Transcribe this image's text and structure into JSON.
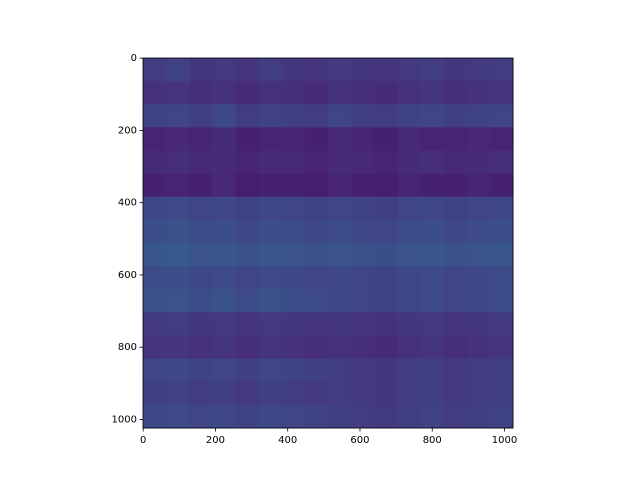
{
  "chart_data": {
    "type": "heatmap",
    "colormap": [
      "#440154",
      "#482878",
      "#3e4989",
      "#31688e",
      "#26828e",
      "#1f9e89",
      "#35b779",
      "#6ece58",
      "#b5de2b",
      "#fde725"
    ],
    "clim": [
      0,
      1
    ],
    "xlim": [
      -0.5,
      1023.5
    ],
    "ylim": [
      1023.5,
      -0.5
    ],
    "xticks": [
      0,
      200,
      400,
      600,
      800,
      1000
    ],
    "yticks": [
      0,
      200,
      400,
      600,
      800,
      1000
    ],
    "values": [
      [
        0.18,
        0.2,
        0.16,
        0.17,
        0.15,
        0.18,
        0.16,
        0.15,
        0.17,
        0.16,
        0.15,
        0.17,
        0.18,
        0.16,
        0.17,
        0.18
      ],
      [
        0.14,
        0.15,
        0.13,
        0.14,
        0.12,
        0.14,
        0.13,
        0.12,
        0.14,
        0.13,
        0.12,
        0.14,
        0.15,
        0.13,
        0.14,
        0.15
      ],
      [
        0.2,
        0.21,
        0.19,
        0.22,
        0.18,
        0.2,
        0.19,
        0.18,
        0.21,
        0.19,
        0.18,
        0.2,
        0.21,
        0.19,
        0.2,
        0.21
      ],
      [
        0.1,
        0.11,
        0.1,
        0.12,
        0.09,
        0.1,
        0.1,
        0.09,
        0.11,
        0.1,
        0.09,
        0.11,
        0.1,
        0.1,
        0.11,
        0.1
      ],
      [
        0.12,
        0.13,
        0.11,
        0.12,
        0.1,
        0.12,
        0.11,
        0.1,
        0.12,
        0.11,
        0.1,
        0.12,
        0.13,
        0.11,
        0.12,
        0.13
      ],
      [
        0.09,
        0.1,
        0.09,
        0.11,
        0.08,
        0.09,
        0.09,
        0.08,
        0.1,
        0.09,
        0.08,
        0.1,
        0.09,
        0.09,
        0.1,
        0.09
      ],
      [
        0.22,
        0.23,
        0.21,
        0.22,
        0.2,
        0.22,
        0.21,
        0.2,
        0.21,
        0.2,
        0.19,
        0.21,
        0.22,
        0.2,
        0.21,
        0.22
      ],
      [
        0.24,
        0.25,
        0.23,
        0.24,
        0.22,
        0.24,
        0.23,
        0.22,
        0.23,
        0.22,
        0.21,
        0.23,
        0.24,
        0.22,
        0.23,
        0.24
      ],
      [
        0.27,
        0.28,
        0.26,
        0.27,
        0.25,
        0.27,
        0.26,
        0.25,
        0.26,
        0.25,
        0.24,
        0.26,
        0.27,
        0.25,
        0.26,
        0.27
      ],
      [
        0.23,
        0.24,
        0.22,
        0.23,
        0.21,
        0.23,
        0.22,
        0.21,
        0.22,
        0.21,
        0.2,
        0.22,
        0.23,
        0.21,
        0.22,
        0.23
      ],
      [
        0.25,
        0.26,
        0.24,
        0.25,
        0.23,
        0.25,
        0.24,
        0.23,
        0.22,
        0.21,
        0.2,
        0.22,
        0.23,
        0.21,
        0.22,
        0.23
      ],
      [
        0.17,
        0.18,
        0.16,
        0.17,
        0.15,
        0.17,
        0.16,
        0.15,
        0.16,
        0.15,
        0.14,
        0.16,
        0.17,
        0.15,
        0.16,
        0.17
      ],
      [
        0.15,
        0.16,
        0.14,
        0.15,
        0.13,
        0.15,
        0.14,
        0.13,
        0.14,
        0.13,
        0.12,
        0.14,
        0.15,
        0.13,
        0.14,
        0.15
      ],
      [
        0.21,
        0.22,
        0.2,
        0.21,
        0.19,
        0.21,
        0.2,
        0.19,
        0.18,
        0.17,
        0.16,
        0.18,
        0.19,
        0.17,
        0.18,
        0.19
      ],
      [
        0.19,
        0.2,
        0.18,
        0.19,
        0.17,
        0.19,
        0.18,
        0.17,
        0.18,
        0.17,
        0.16,
        0.18,
        0.19,
        0.17,
        0.18,
        0.19
      ],
      [
        0.22,
        0.23,
        0.21,
        0.22,
        0.2,
        0.22,
        0.21,
        0.2,
        0.19,
        0.18,
        0.17,
        0.19,
        0.2,
        0.18,
        0.19,
        0.2
      ]
    ]
  }
}
